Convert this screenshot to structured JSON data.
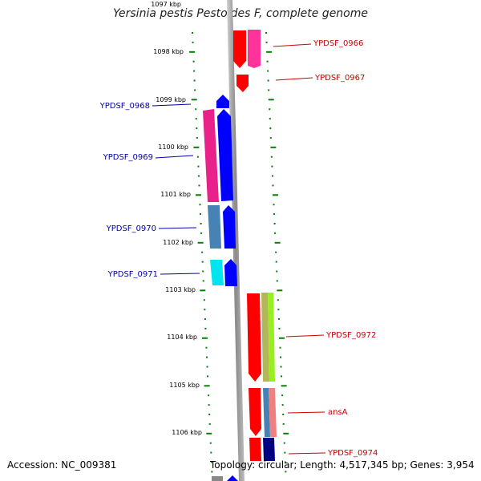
{
  "title": "Yersinia pestis Pestoides F, complete genome",
  "accession": "Accession: NC_009381",
  "topology": "Topology: circular; Length: 4,517,345 bp; Genes: 3,954",
  "ruler": {
    "labels": [
      "1097 kbp",
      "1098 kbp",
      "1099 kbp",
      "1100 kbp",
      "1101 kbp",
      "1102 kbp",
      "1103 kbp",
      "1104 kbp",
      "1105 kbp",
      "1106 kbp"
    ]
  },
  "genes": [
    {
      "name": "YPDSF_0966",
      "side": "right",
      "color": "#cc0000"
    },
    {
      "name": "YPDSF_0967",
      "side": "right",
      "color": "#cc0000"
    },
    {
      "name": "YPDSF_0968",
      "side": "left",
      "color": "#0000aa"
    },
    {
      "name": "YPDSF_0969",
      "side": "left",
      "color": "#0000aa"
    },
    {
      "name": "YPDSF_0970",
      "side": "left",
      "color": "#0000aa"
    },
    {
      "name": "YPDSF_0971",
      "side": "left",
      "color": "#0000aa"
    },
    {
      "name": "YPDSF_0972",
      "side": "right",
      "color": "#cc0000"
    },
    {
      "name": "ansA",
      "side": "right",
      "color": "#cc0000"
    },
    {
      "name": "YPDSF_0974",
      "side": "right",
      "color": "#cc0000"
    }
  ],
  "colors": {
    "forward_strand": "#0000ff",
    "reverse_strand": "#ff0000",
    "ruler_ticks": "#0a7d0a",
    "backbone": "#9a9a9a"
  }
}
